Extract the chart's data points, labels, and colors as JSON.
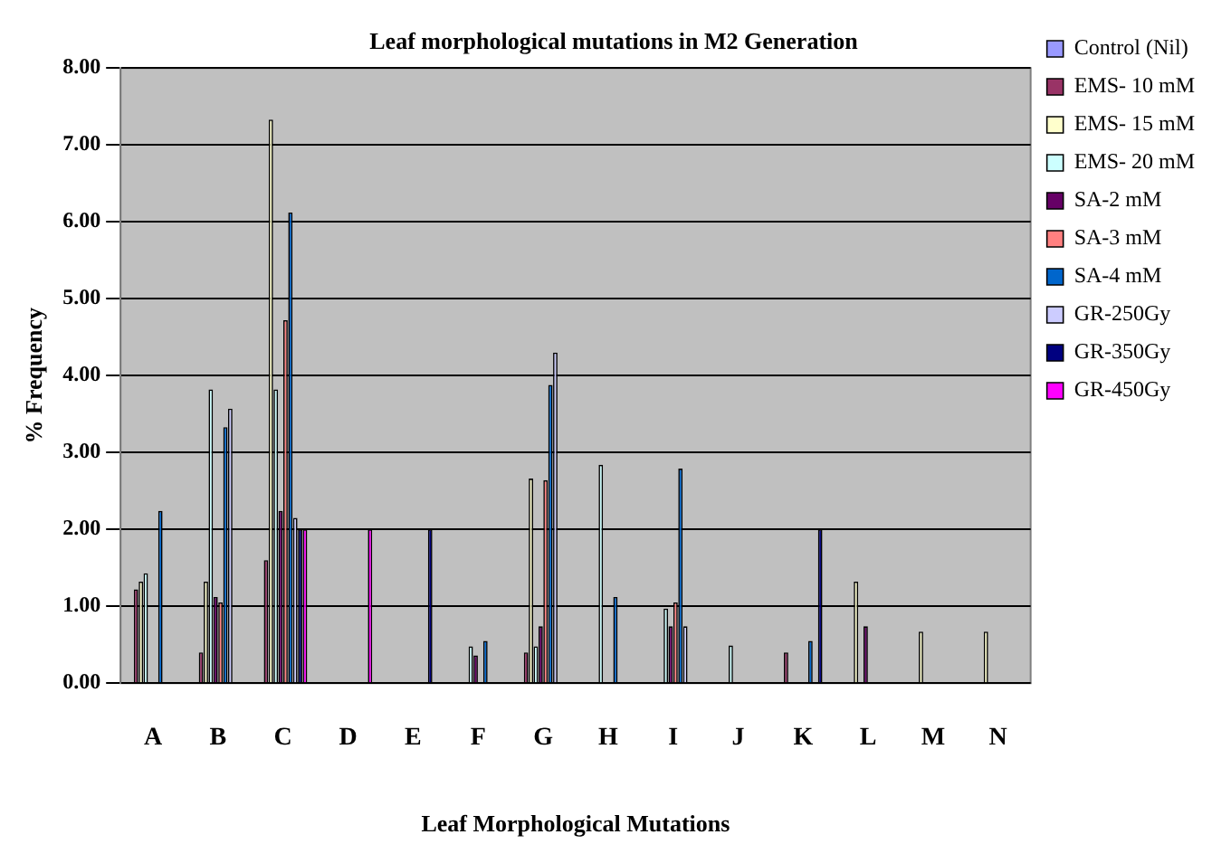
{
  "chart_data": {
    "type": "bar",
    "title": "Leaf morphological mutations in M2 Generation",
    "xlabel": "Leaf Morphological Mutations",
    "ylabel": "% Frequency",
    "categories": [
      "A",
      "B",
      "C",
      "D",
      "E",
      "F",
      "G",
      "H",
      "I",
      "J",
      "K",
      "L",
      "M",
      "N"
    ],
    "series": [
      {
        "name": "Control (Nil)",
        "color": "#9999ff",
        "values": [
          null,
          null,
          null,
          null,
          null,
          null,
          null,
          null,
          null,
          null,
          null,
          null,
          null,
          null
        ]
      },
      {
        "name": "EMS- 10 mM",
        "color": "#993366",
        "values": [
          1.22,
          0.4,
          1.6,
          null,
          null,
          null,
          0.4,
          null,
          null,
          null,
          0.4,
          null,
          null,
          null
        ]
      },
      {
        "name": "EMS- 15 mM",
        "color": "#ffffcc",
        "values": [
          1.32,
          1.32,
          7.33,
          null,
          null,
          null,
          2.66,
          null,
          null,
          null,
          null,
          1.32,
          0.67,
          0.67
        ]
      },
      {
        "name": "EMS- 20 mM",
        "color": "#ccffff",
        "values": [
          1.43,
          3.82,
          3.82,
          null,
          null,
          0.48,
          0.48,
          2.84,
          0.97,
          0.49,
          null,
          null,
          null,
          null
        ]
      },
      {
        "name": "SA-2 mM",
        "color": "#660066",
        "values": [
          null,
          1.12,
          2.24,
          null,
          null,
          0.36,
          0.74,
          null,
          0.74,
          null,
          null,
          0.74,
          null,
          null
        ]
      },
      {
        "name": "SA-3 mM",
        "color": "#ff8080",
        "values": [
          null,
          1.05,
          4.72,
          null,
          null,
          null,
          2.64,
          null,
          1.05,
          null,
          null,
          null,
          null,
          null
        ]
      },
      {
        "name": "SA-4 mM",
        "color": "#0066cc",
        "values": [
          2.24,
          3.33,
          6.12,
          null,
          null,
          0.55,
          3.88,
          1.12,
          2.79,
          null,
          0.55,
          null,
          null,
          null
        ]
      },
      {
        "name": "GR-250Gy",
        "color": "#ccccff",
        "values": [
          null,
          3.57,
          2.15,
          null,
          null,
          null,
          4.3,
          null,
          0.74,
          null,
          null,
          null,
          null,
          null
        ]
      },
      {
        "name": "GR-350Gy",
        "color": "#000080",
        "values": [
          null,
          null,
          2.0,
          null,
          2.0,
          null,
          null,
          null,
          null,
          null,
          2.0,
          null,
          null,
          null
        ]
      },
      {
        "name": "GR-450Gy",
        "color": "#ff00ff",
        "values": [
          null,
          null,
          2.0,
          2.0,
          null,
          null,
          null,
          null,
          null,
          null,
          null,
          null,
          null,
          null
        ]
      }
    ],
    "ylim": [
      0,
      8
    ],
    "yticks": [
      {
        "value": 0,
        "label": "0.00"
      },
      {
        "value": 1,
        "label": "1.00"
      },
      {
        "value": 2,
        "label": "2.00"
      },
      {
        "value": 3,
        "label": "3.00"
      },
      {
        "value": 4,
        "label": "4.00"
      },
      {
        "value": 5,
        "label": "5.00"
      },
      {
        "value": 6,
        "label": "6.00"
      },
      {
        "value": 7,
        "label": "7.00"
      },
      {
        "value": 8,
        "label": "8.00"
      }
    ],
    "grid": "y",
    "legend": "top right"
  }
}
